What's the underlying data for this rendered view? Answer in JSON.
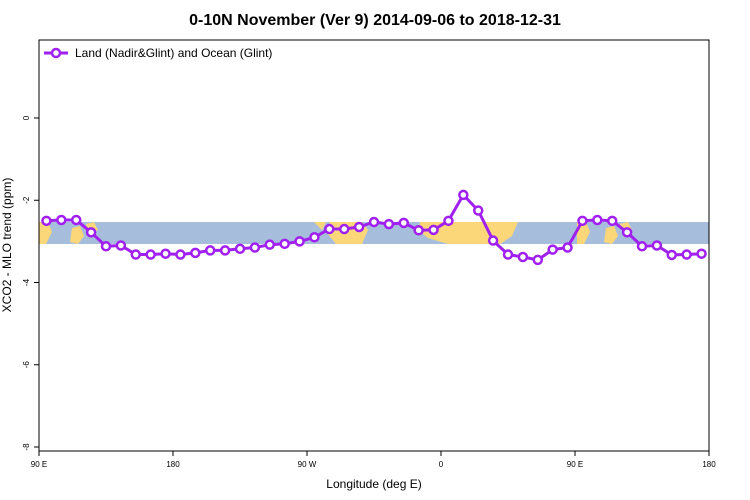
{
  "chart_data": {
    "type": "line",
    "title": "0-10N November (Ver 9)   2014-09-06 to 2018-12-31",
    "xlabel": "Longitude (deg E)",
    "ylabel": "XCO2 - MLO trend (ppm)",
    "xlim": [
      90,
      540
    ],
    "ylim": [
      -8,
      2
    ],
    "x_ticks": [
      {
        "value": 90,
        "label": "90 E"
      },
      {
        "value": 180,
        "label": "180"
      },
      {
        "value": 270,
        "label": "90 W"
      },
      {
        "value": 360,
        "label": "0"
      },
      {
        "value": 450,
        "label": "90 E"
      },
      {
        "value": 540,
        "label": "180"
      }
    ],
    "y_ticks": [
      {
        "value": 0,
        "label": "0"
      },
      {
        "value": -2,
        "label": "-2"
      },
      {
        "value": -4,
        "label": "-4"
      },
      {
        "value": -6,
        "label": "-6"
      },
      {
        "value": -8,
        "label": "-8"
      }
    ],
    "legend": {
      "position": "top-left"
    },
    "series": [
      {
        "name": "Land (Nadir&Glint) and Ocean (Glint)",
        "color": "#a020f0",
        "x": [
          95,
          105,
          115,
          125,
          135,
          145,
          155,
          165,
          175,
          185,
          195,
          205,
          215,
          225,
          235,
          245,
          255,
          265,
          275,
          285,
          295,
          305,
          315,
          325,
          335,
          345,
          355,
          365,
          375,
          385,
          395,
          405,
          415,
          425,
          435,
          445,
          455,
          465,
          475,
          485,
          495,
          505,
          515,
          525,
          535
        ],
        "y": [
          -2.5,
          -2.48,
          -2.48,
          -2.78,
          -3.12,
          -3.1,
          -3.32,
          -3.32,
          -3.3,
          -3.32,
          -3.28,
          -3.22,
          -3.22,
          -3.18,
          -3.15,
          -3.08,
          -3.06,
          -3.0,
          -2.9,
          -2.7,
          -2.7,
          -2.65,
          -2.53,
          -2.58,
          -2.55,
          -2.73,
          -2.72,
          -2.5,
          -1.87,
          -2.25,
          -2.98,
          -3.32,
          -3.38,
          -3.45,
          -3.2,
          -3.15,
          -2.5,
          -2.48,
          -2.5,
          -2.78,
          -3.12,
          -3.1,
          -3.33,
          -3.32,
          -3.3
        ]
      }
    ]
  }
}
